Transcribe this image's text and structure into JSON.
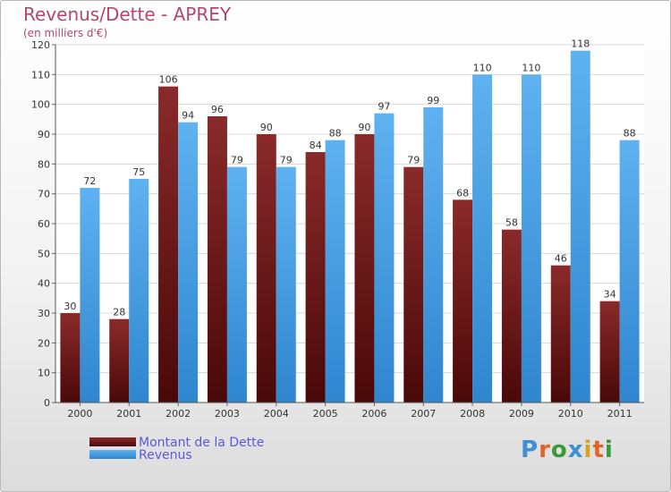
{
  "chart_data": {
    "type": "bar",
    "title": "Revenus/Dette - APREY",
    "subtitle": "(en milliers d'€)",
    "categories": [
      "2000",
      "2001",
      "2002",
      "2003",
      "2004",
      "2005",
      "2006",
      "2007",
      "2008",
      "2009",
      "2010",
      "2011"
    ],
    "series": [
      {
        "name": "Montant de la Dette",
        "color": "#7b1e1e",
        "values": [
          30,
          28,
          106,
          96,
          90,
          84,
          90,
          79,
          68,
          58,
          46,
          34
        ]
      },
      {
        "name": "Revenus",
        "color": "#4aa3e6",
        "values": [
          72,
          75,
          94,
          79,
          79,
          88,
          97,
          99,
          110,
          110,
          118,
          88
        ]
      }
    ],
    "ylim": [
      0,
      120
    ],
    "yticks": [
      0,
      10,
      20,
      30,
      40,
      50,
      60,
      70,
      80,
      90,
      100,
      110,
      120
    ],
    "grid": true,
    "legend": "bottom-left"
  },
  "logo": {
    "text": "Proxiti"
  }
}
